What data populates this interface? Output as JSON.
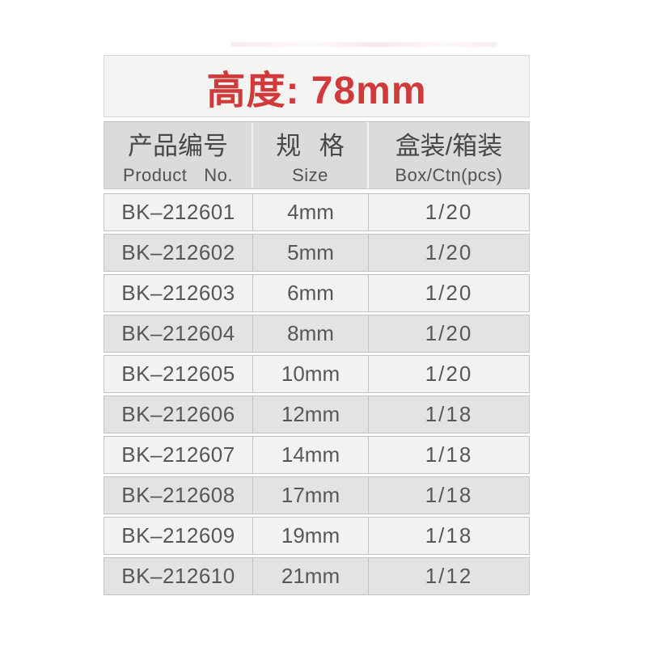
{
  "title": {
    "text": "高度: 78mm"
  },
  "columns": [
    {
      "zh": "产品编号",
      "en": "Product No."
    },
    {
      "zh": "规 格",
      "en": "Size"
    },
    {
      "zh": "盒装/箱装",
      "en": "Box/Ctn(pcs)"
    }
  ],
  "rows": [
    {
      "product_no": "BK–212601",
      "size": "4mm",
      "box_ctn": "1/20"
    },
    {
      "product_no": "BK–212602",
      "size": "5mm",
      "box_ctn": "1/20"
    },
    {
      "product_no": "BK–212603",
      "size": "6mm",
      "box_ctn": "1/20"
    },
    {
      "product_no": "BK–212604",
      "size": "8mm",
      "box_ctn": "1/20"
    },
    {
      "product_no": "BK–212605",
      "size": "10mm",
      "box_ctn": "1/20"
    },
    {
      "product_no": "BK–212606",
      "size": "12mm",
      "box_ctn": "1/18"
    },
    {
      "product_no": "BK–212607",
      "size": "14mm",
      "box_ctn": "1/18"
    },
    {
      "product_no": "BK–212608",
      "size": "17mm",
      "box_ctn": "1/18"
    },
    {
      "product_no": "BK–212609",
      "size": "19mm",
      "box_ctn": "1/18"
    },
    {
      "product_no": "BK–212610",
      "size": "21mm",
      "box_ctn": "1/12"
    }
  ],
  "colors": {
    "accent_red": "#d13a3a",
    "banner_bg": "#f4f4f2",
    "header_bg": "#dbdbd9",
    "row_light": "#f2f2f0",
    "row_dark": "#e3e3e1",
    "grid_line": "#c2c2c0",
    "text": "#57575a"
  }
}
